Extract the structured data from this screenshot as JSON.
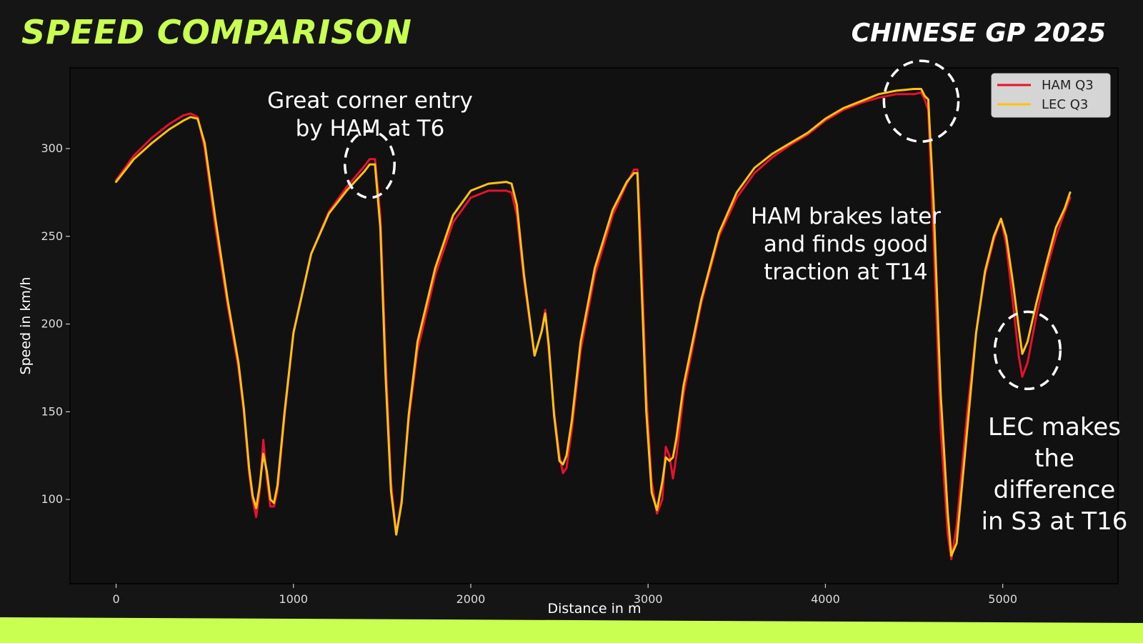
{
  "header": {
    "title": "SPEED COMPARISON",
    "subtitle": "CHINESE GP 2025"
  },
  "colors": {
    "background": "#151515",
    "plot_background": "#111111",
    "accent": "#c8ff50",
    "ham": "#e8112d",
    "lec": "#ffc30f",
    "text": "#ffffff",
    "axis_text": "#dddddd"
  },
  "chart_data": {
    "type": "line",
    "xlabel": "Distance in m",
    "ylabel": "Speed in km/h",
    "xlim": [
      -260,
      5650
    ],
    "ylim": [
      52,
      346
    ],
    "xticks": [
      0,
      1000,
      2000,
      3000,
      4000,
      5000
    ],
    "yticks": [
      100,
      150,
      200,
      250,
      300
    ],
    "grid": false,
    "legend_position": "top-right",
    "series": [
      {
        "name": "HAM Q3",
        "color": "#e8112d",
        "points": [
          [
            0,
            282
          ],
          [
            100,
            296
          ],
          [
            200,
            306
          ],
          [
            300,
            314
          ],
          [
            380,
            319
          ],
          [
            420,
            320
          ],
          [
            460,
            318
          ],
          [
            500,
            300
          ],
          [
            560,
            255
          ],
          [
            630,
            210
          ],
          [
            690,
            175
          ],
          [
            720,
            150
          ],
          [
            750,
            115
          ],
          [
            770,
            100
          ],
          [
            790,
            90
          ],
          [
            810,
            105
          ],
          [
            830,
            134
          ],
          [
            850,
            112
          ],
          [
            870,
            96
          ],
          [
            890,
            96
          ],
          [
            910,
            105
          ],
          [
            950,
            148
          ],
          [
            1000,
            195
          ],
          [
            1100,
            240
          ],
          [
            1200,
            264
          ],
          [
            1300,
            278
          ],
          [
            1400,
            290
          ],
          [
            1430,
            294
          ],
          [
            1460,
            294
          ],
          [
            1490,
            262
          ],
          [
            1520,
            180
          ],
          [
            1550,
            110
          ],
          [
            1580,
            80
          ],
          [
            1610,
            100
          ],
          [
            1650,
            145
          ],
          [
            1700,
            185
          ],
          [
            1800,
            228
          ],
          [
            1900,
            258
          ],
          [
            2000,
            272
          ],
          [
            2100,
            276
          ],
          [
            2200,
            276
          ],
          [
            2230,
            275
          ],
          [
            2260,
            262
          ],
          [
            2300,
            225
          ],
          [
            2360,
            182
          ],
          [
            2400,
            196
          ],
          [
            2420,
            208
          ],
          [
            2440,
            185
          ],
          [
            2470,
            150
          ],
          [
            2500,
            125
          ],
          [
            2520,
            115
          ],
          [
            2540,
            118
          ],
          [
            2570,
            140
          ],
          [
            2620,
            185
          ],
          [
            2700,
            228
          ],
          [
            2800,
            262
          ],
          [
            2880,
            280
          ],
          [
            2920,
            288
          ],
          [
            2940,
            288
          ],
          [
            2960,
            246
          ],
          [
            2990,
            160
          ],
          [
            3020,
            110
          ],
          [
            3050,
            92
          ],
          [
            3080,
            100
          ],
          [
            3100,
            130
          ],
          [
            3120,
            125
          ],
          [
            3140,
            112
          ],
          [
            3160,
            125
          ],
          [
            3200,
            160
          ],
          [
            3300,
            212
          ],
          [
            3400,
            250
          ],
          [
            3500,
            272
          ],
          [
            3600,
            286
          ],
          [
            3700,
            295
          ],
          [
            3800,
            302
          ],
          [
            3900,
            308
          ],
          [
            4000,
            316
          ],
          [
            4100,
            322
          ],
          [
            4200,
            326
          ],
          [
            4300,
            329
          ],
          [
            4400,
            331
          ],
          [
            4500,
            331
          ],
          [
            4540,
            332
          ],
          [
            4560,
            328
          ],
          [
            4580,
            322
          ],
          [
            4610,
            250
          ],
          [
            4650,
            140
          ],
          [
            4690,
            80
          ],
          [
            4710,
            66
          ],
          [
            4740,
            85
          ],
          [
            4800,
            150
          ],
          [
            4850,
            195
          ],
          [
            4900,
            228
          ],
          [
            4950,
            248
          ],
          [
            4990,
            260
          ],
          [
            5020,
            245
          ],
          [
            5060,
            210
          ],
          [
            5090,
            182
          ],
          [
            5110,
            170
          ],
          [
            5140,
            178
          ],
          [
            5190,
            205
          ],
          [
            5250,
            232
          ],
          [
            5300,
            250
          ],
          [
            5350,
            264
          ],
          [
            5380,
            272
          ]
        ]
      },
      {
        "name": "LEC Q3",
        "color": "#ffc30f",
        "points": [
          [
            0,
            281
          ],
          [
            100,
            294
          ],
          [
            200,
            303
          ],
          [
            300,
            311
          ],
          [
            380,
            316
          ],
          [
            420,
            318
          ],
          [
            460,
            317
          ],
          [
            500,
            303
          ],
          [
            560,
            260
          ],
          [
            630,
            213
          ],
          [
            690,
            178
          ],
          [
            720,
            152
          ],
          [
            750,
            118
          ],
          [
            770,
            102
          ],
          [
            790,
            95
          ],
          [
            810,
            108
          ],
          [
            830,
            126
          ],
          [
            850,
            116
          ],
          [
            870,
            100
          ],
          [
            890,
            98
          ],
          [
            910,
            108
          ],
          [
            950,
            150
          ],
          [
            1000,
            195
          ],
          [
            1100,
            240
          ],
          [
            1200,
            263
          ],
          [
            1300,
            276
          ],
          [
            1400,
            287
          ],
          [
            1430,
            291
          ],
          [
            1460,
            291
          ],
          [
            1490,
            255
          ],
          [
            1520,
            170
          ],
          [
            1550,
            105
          ],
          [
            1580,
            80
          ],
          [
            1610,
            98
          ],
          [
            1650,
            148
          ],
          [
            1700,
            190
          ],
          [
            1800,
            232
          ],
          [
            1900,
            262
          ],
          [
            2000,
            276
          ],
          [
            2100,
            280
          ],
          [
            2200,
            281
          ],
          [
            2230,
            280
          ],
          [
            2260,
            268
          ],
          [
            2300,
            228
          ],
          [
            2360,
            182
          ],
          [
            2400,
            196
          ],
          [
            2420,
            206
          ],
          [
            2440,
            188
          ],
          [
            2470,
            148
          ],
          [
            2500,
            122
          ],
          [
            2520,
            120
          ],
          [
            2540,
            125
          ],
          [
            2570,
            145
          ],
          [
            2620,
            190
          ],
          [
            2700,
            232
          ],
          [
            2800,
            265
          ],
          [
            2880,
            281
          ],
          [
            2920,
            286
          ],
          [
            2940,
            286
          ],
          [
            2960,
            230
          ],
          [
            2990,
            150
          ],
          [
            3020,
            104
          ],
          [
            3050,
            94
          ],
          [
            3080,
            110
          ],
          [
            3100,
            124
          ],
          [
            3120,
            122
          ],
          [
            3140,
            124
          ],
          [
            3160,
            135
          ],
          [
            3200,
            165
          ],
          [
            3300,
            214
          ],
          [
            3400,
            252
          ],
          [
            3500,
            275
          ],
          [
            3600,
            289
          ],
          [
            3700,
            297
          ],
          [
            3800,
            303
          ],
          [
            3900,
            309
          ],
          [
            4000,
            317
          ],
          [
            4100,
            323
          ],
          [
            4200,
            327
          ],
          [
            4300,
            331
          ],
          [
            4400,
            333
          ],
          [
            4500,
            334
          ],
          [
            4540,
            334
          ],
          [
            4560,
            330
          ],
          [
            4580,
            328
          ],
          [
            4610,
            270
          ],
          [
            4650,
            160
          ],
          [
            4690,
            92
          ],
          [
            4710,
            68
          ],
          [
            4740,
            75
          ],
          [
            4800,
            140
          ],
          [
            4850,
            195
          ],
          [
            4900,
            230
          ],
          [
            4950,
            250
          ],
          [
            4990,
            260
          ],
          [
            5020,
            250
          ],
          [
            5060,
            222
          ],
          [
            5090,
            198
          ],
          [
            5110,
            183
          ],
          [
            5140,
            190
          ],
          [
            5190,
            212
          ],
          [
            5250,
            236
          ],
          [
            5300,
            255
          ],
          [
            5350,
            266
          ],
          [
            5380,
            275
          ]
        ]
      }
    ],
    "annotations": [
      {
        "text": [
          "Great corner entry",
          "by HAM at T6"
        ],
        "circle": {
          "x": 1430,
          "y": 291,
          "rx": 140,
          "ry": 19
        }
      },
      {
        "text": [
          "HAM brakes later",
          "and finds good",
          "traction at T14"
        ],
        "circle": {
          "x": 4540,
          "y": 327,
          "rx": 210,
          "ry": 23
        }
      },
      {
        "text": [
          "LEC makes",
          "the",
          "difference",
          "in S3 at T16"
        ],
        "circle": {
          "x": 5140,
          "y": 185,
          "rx": 185,
          "ry": 22
        }
      }
    ]
  }
}
